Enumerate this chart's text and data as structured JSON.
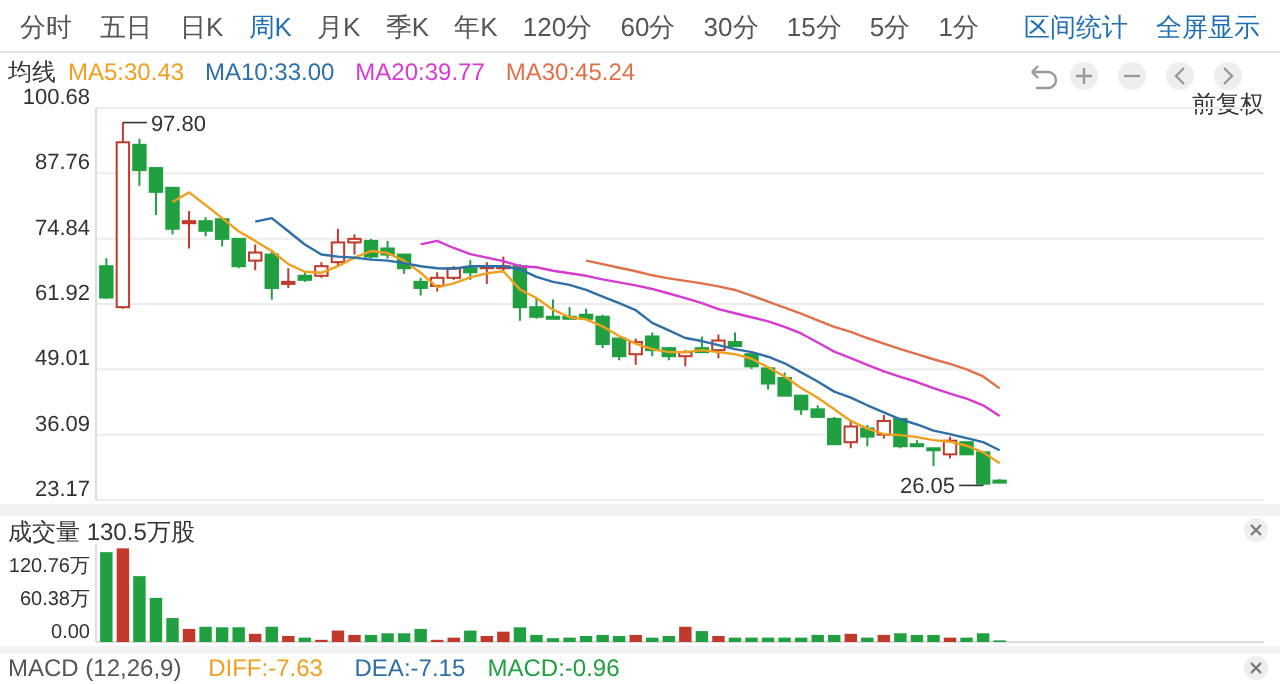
{
  "chart_data": [
    {
      "type": "candlestick",
      "legend_title": "均线",
      "legend": "top left",
      "grid": "y",
      "categories": [
        null,
        null,
        null,
        null,
        null,
        null,
        null,
        null,
        null,
        null,
        null,
        null,
        null,
        null,
        null,
        null,
        null,
        null,
        null,
        null,
        null,
        null,
        null,
        null,
        null,
        null,
        null,
        null,
        null,
        null,
        null,
        null,
        null,
        null,
        null,
        null,
        null,
        null,
        null,
        null,
        null,
        null,
        null,
        null,
        null,
        null,
        null,
        null,
        null,
        null,
        null,
        null,
        null,
        null,
        null
      ],
      "ohlc": [
        [
          69.4,
          71.0,
          63.0,
          63.2
        ],
        [
          61.3,
          97.8,
          61.0,
          93.9
        ],
        [
          93.4,
          94.6,
          85.3,
          88.4
        ],
        [
          88.8,
          89.0,
          79.5,
          84.1
        ],
        [
          84.9,
          84.9,
          75.7,
          76.8
        ],
        [
          77.9,
          80.3,
          72.9,
          78.3
        ],
        [
          78.3,
          79.1,
          75.3,
          76.4
        ],
        [
          78.7,
          78.7,
          73.3,
          74.8
        ],
        [
          74.8,
          74.8,
          69.0,
          69.4
        ],
        [
          70.5,
          73.7,
          68.6,
          72.1
        ],
        [
          71.7,
          72.5,
          62.8,
          65.1
        ],
        [
          65.9,
          69.0,
          65.1,
          66.3
        ],
        [
          67.5,
          68.2,
          66.3,
          66.7
        ],
        [
          67.5,
          70.2,
          67.1,
          69.4
        ],
        [
          70.2,
          76.8,
          69.4,
          74.1
        ],
        [
          74.1,
          75.7,
          71.7,
          74.8
        ],
        [
          74.4,
          74.8,
          70.9,
          71.3
        ],
        [
          72.9,
          74.4,
          70.9,
          71.7
        ],
        [
          71.7,
          71.7,
          67.9,
          69.0
        ],
        [
          66.3,
          67.1,
          63.6,
          65.1
        ],
        [
          65.5,
          68.2,
          64.4,
          67.1
        ],
        [
          67.1,
          69.4,
          66.7,
          69.0
        ],
        [
          69.0,
          70.6,
          66.7,
          68.2
        ],
        [
          69.0,
          70.2,
          65.9,
          69.4
        ],
        [
          69.0,
          71.3,
          68.2,
          69.4
        ],
        [
          69.4,
          69.8,
          58.6,
          61.3
        ],
        [
          61.3,
          63.2,
          59.0,
          59.4
        ],
        [
          59.4,
          62.8,
          59.0,
          59.0
        ],
        [
          59.4,
          61.3,
          59.0,
          59.0
        ],
        [
          59.8,
          61.0,
          59.0,
          59.0
        ],
        [
          59.4,
          59.8,
          53.2,
          54.0
        ],
        [
          55.1,
          55.1,
          50.8,
          51.6
        ],
        [
          52.0,
          55.1,
          49.9,
          54.4
        ],
        [
          55.5,
          56.3,
          51.6,
          52.8
        ],
        [
          53.2,
          53.2,
          50.8,
          51.6
        ],
        [
          51.6,
          52.8,
          49.6,
          52.4
        ],
        [
          53.2,
          55.5,
          52.4,
          52.4
        ],
        [
          52.8,
          55.9,
          51.2,
          54.7
        ],
        [
          54.4,
          56.3,
          53.6,
          53.6
        ],
        [
          52.0,
          52.0,
          49.1,
          49.6
        ],
        [
          49.2,
          49.2,
          45.0,
          46.2
        ],
        [
          47.3,
          48.4,
          43.8,
          43.8
        ],
        [
          43.8,
          43.8,
          40.0,
          41.1
        ],
        [
          41.1,
          41.9,
          39.6,
          39.6
        ],
        [
          39.2,
          39.6,
          34.2,
          34.2
        ],
        [
          34.6,
          38.8,
          33.4,
          37.7
        ],
        [
          37.3,
          38.0,
          33.8,
          35.7
        ],
        [
          36.1,
          40.0,
          35.3,
          38.8
        ],
        [
          39.2,
          39.2,
          33.4,
          33.8
        ],
        [
          34.2,
          35.0,
          33.8,
          33.8
        ],
        [
          33.4,
          33.4,
          29.9,
          33.0
        ],
        [
          32.2,
          35.7,
          31.4,
          34.9
        ],
        [
          34.6,
          34.6,
          32.2,
          32.2
        ],
        [
          32.6,
          32.6,
          26.05,
          26.4
        ],
        [
          27.0,
          27.3,
          26.6,
          26.8
        ]
      ],
      "colors": [
        "#20a040",
        "#c0392b",
        "#20a040",
        "#20a040",
        "#20a040",
        "#c0392b",
        "#20a040",
        "#20a040",
        "#20a040",
        "#c0392b",
        "#20a040",
        "#c0392b",
        "#20a040",
        "#c0392b",
        "#c0392b",
        "#c0392b",
        "#20a040",
        "#20a040",
        "#20a040",
        "#20a040",
        "#c0392b",
        "#c0392b",
        "#20a040",
        "#c0392b",
        "#c0392b",
        "#20a040",
        "#20a040",
        "#20a040",
        "#20a040",
        "#20a040",
        "#20a040",
        "#20a040",
        "#c0392b",
        "#20a040",
        "#20a040",
        "#c0392b",
        "#20a040",
        "#c0392b",
        "#20a040",
        "#20a040",
        "#20a040",
        "#20a040",
        "#20a040",
        "#20a040",
        "#20a040",
        "#c0392b",
        "#20a040",
        "#c0392b",
        "#20a040",
        "#20a040",
        "#20a040",
        "#c0392b",
        "#20a040",
        "#20a040",
        "#20a040"
      ],
      "series": [
        {
          "type": "line",
          "name": "MA5:30.43",
          "color": "#f0a020",
          "values": [
            null,
            null,
            null,
            null,
            82.1,
            84.0,
            81.5,
            78.9,
            76.3,
            74.4,
            72.4,
            69.8,
            68.3,
            68.1,
            69.4,
            71.1,
            72.4,
            72.0,
            70.5,
            68.1,
            65.2,
            66.0,
            67.2,
            68.0,
            68.4,
            64.8,
            63.1,
            60.8,
            59.3,
            58.9,
            57.5,
            55.6,
            54.1,
            53.0,
            52.4,
            52.4,
            52.8,
            52.4,
            52.0,
            51.1,
            49.4,
            47.6,
            45.3,
            43.4,
            41.1,
            38.8,
            37.3,
            36.2,
            36.0,
            35.6,
            35.0,
            34.7,
            33.9,
            32.6,
            30.43
          ]
        },
        {
          "type": "line",
          "name": "MA10:33.00",
          "color": "#2f6fa8",
          "values": [
            null,
            null,
            null,
            null,
            null,
            null,
            null,
            null,
            null,
            78.2,
            78.9,
            76.3,
            73.7,
            71.7,
            71.3,
            71.1,
            70.7,
            70.5,
            70.0,
            69.4,
            69.0,
            68.9,
            69.4,
            69.4,
            69.4,
            68.8,
            67.3,
            66.3,
            65.7,
            64.7,
            63.4,
            62.1,
            60.7,
            58.2,
            56.7,
            55.2,
            54.6,
            53.8,
            53.0,
            52.4,
            51.5,
            50.2,
            48.4,
            46.6,
            44.6,
            43.4,
            41.9,
            40.5,
            39.1,
            38.1,
            36.9,
            36.2,
            35.4,
            34.6,
            33.0
          ]
        },
        {
          "type": "line",
          "name": "MA20:39.77",
          "color": "#d63ad0",
          "values": [
            null,
            null,
            null,
            null,
            null,
            null,
            null,
            null,
            null,
            null,
            null,
            null,
            null,
            null,
            null,
            null,
            null,
            null,
            null,
            73.7,
            74.4,
            73.0,
            71.8,
            71.1,
            70.4,
            69.4,
            69.2,
            68.5,
            68.0,
            67.5,
            66.8,
            66.2,
            65.6,
            64.9,
            64.0,
            63.1,
            62.1,
            60.9,
            60.1,
            59.3,
            58.5,
            57.4,
            56.1,
            54.3,
            52.5,
            51.2,
            49.9,
            48.6,
            47.5,
            46.5,
            45.3,
            44.2,
            43.2,
            41.9,
            39.77
          ]
        },
        {
          "type": "line",
          "name": "MA30:45.24",
          "color": "#e0704a",
          "values": [
            null,
            null,
            null,
            null,
            null,
            null,
            null,
            null,
            null,
            null,
            null,
            null,
            null,
            null,
            null,
            null,
            null,
            null,
            null,
            null,
            null,
            null,
            null,
            null,
            null,
            null,
            null,
            null,
            null,
            70.5,
            69.8,
            69.1,
            68.4,
            67.6,
            67.0,
            66.5,
            66.0,
            65.4,
            64.7,
            63.6,
            62.4,
            61.2,
            60.0,
            58.7,
            57.4,
            56.4,
            55.2,
            54.1,
            53.0,
            52.0,
            51.0,
            50.1,
            49.0,
            47.6,
            45.24
          ]
        }
      ],
      "ylim": [
        23.17,
        100.68
      ],
      "yticks": [
        100.68,
        87.76,
        74.84,
        61.92,
        49.01,
        36.09,
        23.17
      ],
      "annotations": [
        "分时",
        "五日",
        "日K",
        "周K",
        "月K",
        "季K",
        "年K",
        "120分",
        "60分",
        "30分",
        "15分",
        "5分",
        "1分",
        "区间统计",
        "全屏显示",
        "前复权",
        "97.80",
        "26.05"
      ]
    },
    {
      "type": "bar",
      "title": "成交量 130.5万股",
      "categories": [
        null,
        null,
        null,
        null,
        null,
        null,
        null,
        null,
        null,
        null,
        null,
        null,
        null,
        null,
        null,
        null,
        null,
        null,
        null,
        null,
        null,
        null,
        null,
        null,
        null,
        null,
        null,
        null,
        null,
        null,
        null,
        null,
        null,
        null,
        null,
        null,
        null,
        null,
        null,
        null,
        null,
        null,
        null,
        null,
        null,
        null,
        null,
        null,
        null,
        null,
        null,
        null,
        null,
        null,
        null
      ],
      "values": [
        165,
        172,
        121,
        81,
        44,
        24,
        28,
        27,
        27,
        15,
        28,
        11,
        8,
        4,
        21,
        13,
        13,
        16,
        16,
        24,
        4,
        8,
        21,
        11,
        19,
        27,
        13,
        7,
        8,
        11,
        13,
        11,
        13,
        8,
        11,
        28,
        20,
        11,
        8,
        8,
        8,
        8,
        8,
        13,
        13,
        15,
        8,
        13,
        16,
        13,
        13,
        8,
        8,
        16,
        3
      ],
      "colors": [
        "#20a040",
        "#c0392b",
        "#20a040",
        "#20a040",
        "#20a040",
        "#c0392b",
        "#20a040",
        "#20a040",
        "#20a040",
        "#c0392b",
        "#20a040",
        "#c0392b",
        "#20a040",
        "#c0392b",
        "#c0392b",
        "#c0392b",
        "#20a040",
        "#20a040",
        "#20a040",
        "#20a040",
        "#c0392b",
        "#c0392b",
        "#20a040",
        "#c0392b",
        "#c0392b",
        "#20a040",
        "#20a040",
        "#20a040",
        "#20a040",
        "#20a040",
        "#20a040",
        "#20a040",
        "#c0392b",
        "#20a040",
        "#20a040",
        "#c0392b",
        "#20a040",
        "#c0392b",
        "#20a040",
        "#20a040",
        "#20a040",
        "#20a040",
        "#20a040",
        "#20a040",
        "#20a040",
        "#c0392b",
        "#20a040",
        "#c0392b",
        "#20a040",
        "#20a040",
        "#20a040",
        "#c0392b",
        "#20a040",
        "#20a040",
        "#20a040"
      ],
      "ylim": [
        0,
        180
      ],
      "yticks": [
        {
          "value": 0,
          "label": "0.00"
        },
        {
          "value": 60.38,
          "label": "60.38万"
        },
        {
          "value": 120.76,
          "label": "120.76万"
        }
      ],
      "annotations": [
        "MACD (12,26,9)",
        "DIFF:-7.63",
        "DEA:-7.15",
        "MACD:-0.96"
      ]
    }
  ]
}
